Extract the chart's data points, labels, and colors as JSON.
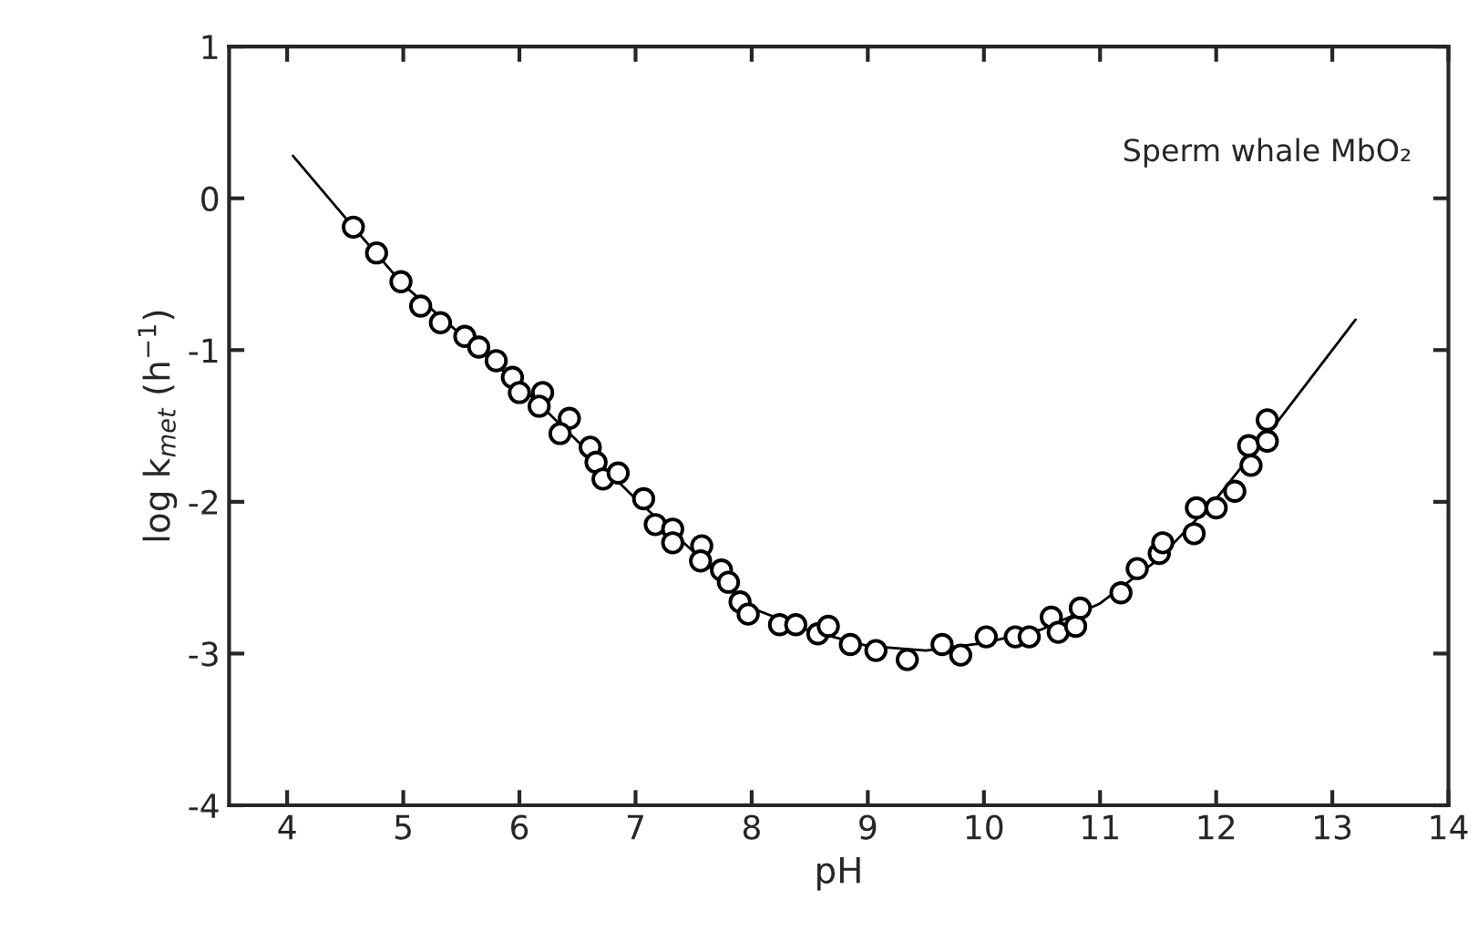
{
  "chart_data": {
    "type": "scatter",
    "xlabel": "pH",
    "ylabel": "log k$_{met}$ (h$^{−1}$)",
    "annotations": [
      "Sperm whale MbO₂"
    ],
    "xlim": [
      3.5,
      14
    ],
    "xticks": [
      4,
      5,
      6,
      7,
      8,
      9,
      10,
      11,
      12,
      13,
      14
    ],
    "ylim": [
      -4,
      1
    ],
    "yticks": [
      -4,
      -3,
      -2,
      -1,
      0,
      1
    ],
    "grid": false,
    "marker": "circle",
    "series": [
      {
        "color": "#000000",
        "x": [
          4.57,
          4.77,
          4.98,
          5.15,
          5.32,
          5.53,
          5.65,
          5.8,
          5.94,
          6.0,
          6.2,
          6.17,
          6.43,
          6.35,
          6.61,
          6.66,
          6.72,
          6.85,
          7.07,
          7.17,
          7.32,
          7.32,
          7.57,
          7.56,
          7.74,
          7.8,
          7.9,
          7.97,
          8.24,
          8.38,
          8.57,
          8.66,
          8.85,
          9.07,
          9.34,
          9.64,
          9.8,
          10.02,
          10.27,
          10.39,
          10.58,
          10.64,
          10.79,
          10.83,
          11.18,
          11.32,
          11.51,
          11.54,
          11.81,
          11.83,
          12.0,
          12.16,
          12.3,
          12.28,
          12.44,
          12.44
        ],
        "values": [
          -0.19,
          -0.36,
          -0.55,
          -0.71,
          -0.82,
          -0.91,
          -0.98,
          -1.07,
          -1.18,
          -1.28,
          -1.28,
          -1.37,
          -1.45,
          -1.55,
          -1.64,
          -1.74,
          -1.85,
          -1.81,
          -1.98,
          -2.15,
          -2.18,
          -2.27,
          -2.29,
          -2.39,
          -2.45,
          -2.53,
          -2.66,
          -2.74,
          -2.81,
          -2.81,
          -2.87,
          -2.82,
          -2.94,
          -2.98,
          -3.04,
          -2.94,
          -3.01,
          -2.89,
          -2.89,
          -2.89,
          -2.76,
          -2.86,
          -2.82,
          -2.7,
          -2.6,
          -2.44,
          -2.34,
          -2.27,
          -2.21,
          -2.04,
          -2.04,
          -1.93,
          -1.76,
          -1.63,
          -1.6,
          -1.46
        ]
      },
      {
        "type": "line",
        "color": "#000000",
        "marker": "none",
        "line_style": "solid",
        "x": [
          4.05,
          4.57,
          5.0,
          5.5,
          6.0,
          6.5,
          7.0,
          7.5,
          8.0,
          8.5,
          9.0,
          9.5,
          10.0,
          10.5,
          11.0,
          11.5,
          12.0,
          12.5,
          13.2
        ],
        "values": [
          0.28,
          -0.19,
          -0.57,
          -0.9,
          -1.23,
          -1.6,
          -1.98,
          -2.33,
          -2.7,
          -2.85,
          -2.95,
          -2.98,
          -2.93,
          -2.84,
          -2.67,
          -2.38,
          -1.98,
          -1.5,
          -0.8
        ]
      }
    ]
  }
}
